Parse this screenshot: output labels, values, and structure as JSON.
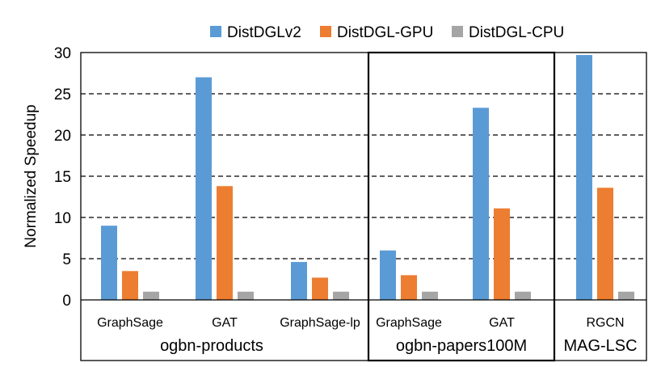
{
  "chart_data": {
    "type": "bar",
    "ylabel": "Normalized Speedup",
    "xlabel": "",
    "ylim": [
      0,
      30
    ],
    "yticks": [
      "0",
      "5",
      "10",
      "15",
      "20",
      "25",
      "30"
    ],
    "grid": "dashed horizontal",
    "legend_position": "top",
    "series": [
      {
        "name": "DistDGLv2",
        "color": "#5b9bd5",
        "values": [
          9.0,
          27.0,
          4.6,
          6.0,
          23.3,
          29.7
        ]
      },
      {
        "name": "DistDGL-GPU",
        "color": "#ed7d31",
        "values": [
          3.5,
          13.8,
          2.7,
          3.0,
          11.1,
          13.6
        ]
      },
      {
        "name": "DistDGL-CPU",
        "color": "#a5a5a5",
        "values": [
          1.0,
          1.0,
          1.0,
          1.0,
          1.0,
          1.0
        ]
      }
    ],
    "categories": [
      "GraphSage",
      "GAT",
      "GraphSage-lp",
      "GraphSage",
      "GAT",
      "RGCN"
    ],
    "groups": [
      {
        "label": "ogbn-products",
        "categories": [
          "GraphSage",
          "GAT",
          "GraphSage-lp"
        ]
      },
      {
        "label": "ogbn-papers100M",
        "categories": [
          "GraphSage",
          "GAT"
        ]
      },
      {
        "label": "MAG-LSC",
        "categories": [
          "RGCN"
        ]
      }
    ]
  }
}
